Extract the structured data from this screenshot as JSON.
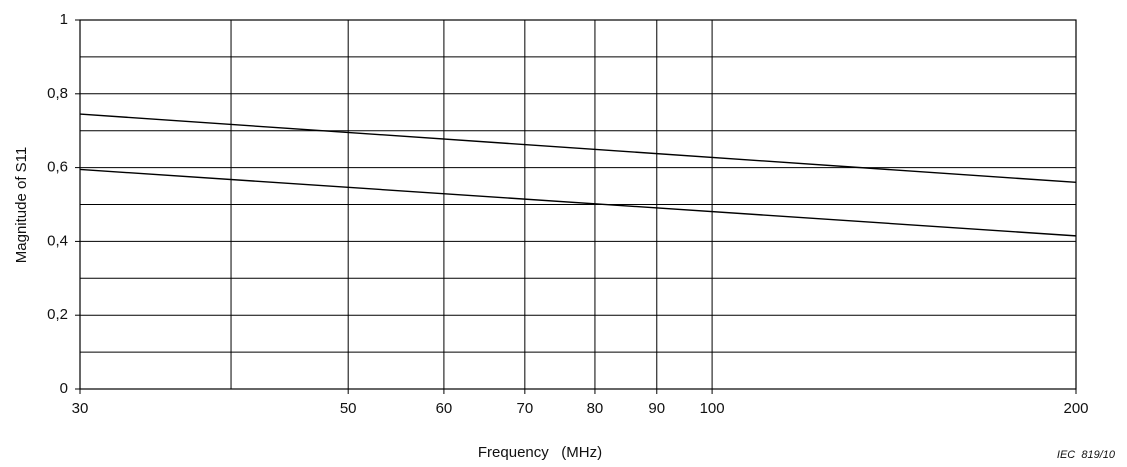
{
  "chart_data": {
    "type": "line",
    "x_label": "Frequency   (MHz)",
    "y_label": "Magnitude of S11",
    "annotation": "IEC  819/10",
    "x_log_scale": true,
    "xlim": [
      30,
      200
    ],
    "xticks": [
      30,
      50,
      60,
      70,
      80,
      90,
      100,
      200
    ],
    "x_minor_ticks": [
      40
    ],
    "ylim": [
      0,
      1
    ],
    "yticks": [
      0,
      {
        "value": 0.2,
        "label": "0,2"
      },
      {
        "value": 0.4,
        "label": "0,4"
      },
      {
        "value": 0.6,
        "label": "0,6"
      },
      {
        "value": 0.8,
        "label": "0,8"
      },
      1
    ],
    "y_minor_ticks": [
      0.1,
      0.3,
      0.5,
      0.7,
      0.9
    ],
    "grid": true,
    "series": [
      {
        "color": "#000000",
        "x": [
          30,
          200
        ],
        "values": [
          0.745,
          0.56
        ]
      },
      {
        "color": "#000000",
        "x": [
          30,
          200
        ],
        "values": [
          0.595,
          0.415
        ]
      }
    ]
  }
}
